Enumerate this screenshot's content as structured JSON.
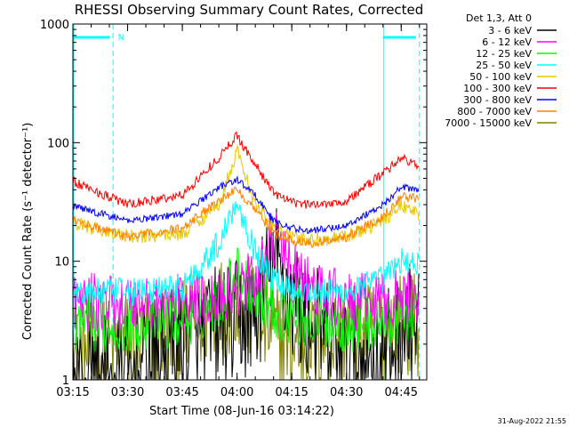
{
  "chart_data": {
    "type": "line",
    "title": "RHESSI Observing Summary Count Rates, Corrected",
    "xlabel": "Start Time (08-Jun-16 03:14:22)",
    "ylabel": "Corrected Count Rate (s⁻¹ detector⁻¹)",
    "yscale": "log",
    "ylim": [
      1,
      1000
    ],
    "xlim": [
      "03:15",
      "04:52"
    ],
    "x_ticks": [
      "03:15",
      "03:30",
      "03:45",
      "04:00",
      "04:15",
      "04:30",
      "04:45"
    ],
    "y_ticks": [
      1,
      10,
      100,
      1000
    ],
    "y_tick_labels": [
      "1",
      "10",
      "100",
      "1000"
    ],
    "legend_header": "Det 1,3, Att 0",
    "legend_position": "outside right",
    "grid": false,
    "annotations": [
      {
        "text": "N",
        "x": "03:26"
      }
    ],
    "night_intervals": [
      {
        "start": "03:15",
        "end": "03:26"
      },
      {
        "start": "04:40",
        "end": "04:50"
      }
    ],
    "series": [
      {
        "name": "3 - 6 keV",
        "color": "#000000",
        "x": [
          "03:15",
          "03:30",
          "03:45",
          "03:55",
          "04:00",
          "04:05",
          "04:10",
          "04:15",
          "04:20",
          "04:30",
          "04:40",
          "04:45",
          "04:50"
        ],
        "y": [
          1.0,
          1.0,
          2.0,
          2.8,
          3.0,
          3.5,
          10,
          5,
          3,
          1.4,
          1.5,
          2.5,
          3.0
        ]
      },
      {
        "name": "6 - 12 keV",
        "color": "#ff00ff",
        "x": [
          "03:15",
          "03:30",
          "03:45",
          "03:55",
          "04:00",
          "04:05",
          "04:10",
          "04:15",
          "04:20",
          "04:30",
          "04:40",
          "04:45",
          "04:50"
        ],
        "y": [
          4.5,
          4.5,
          4.5,
          5,
          6,
          7,
          16,
          9,
          6,
          4.5,
          4.5,
          5,
          5
        ]
      },
      {
        "name": "12 - 25 keV",
        "color": "#00ff00",
        "x": [
          "03:15",
          "03:30",
          "03:45",
          "03:55",
          "04:00",
          "04:05",
          "04:10",
          "04:15",
          "04:20",
          "04:30",
          "04:40",
          "04:45",
          "04:50"
        ],
        "y": [
          3.0,
          3.0,
          3.2,
          4.5,
          8.0,
          5.5,
          4.0,
          3.5,
          3.2,
          3.0,
          3.0,
          3.5,
          4.0
        ]
      },
      {
        "name": "25 - 50 keV",
        "color": "#00ffff",
        "x": [
          "03:15",
          "03:30",
          "03:45",
          "03:55",
          "04:00",
          "04:05",
          "04:10",
          "04:15",
          "04:20",
          "04:30",
          "04:40",
          "04:45",
          "04:50"
        ],
        "y": [
          5.5,
          5.5,
          6,
          14,
          33,
          12,
          7,
          6,
          5.5,
          5.5,
          7,
          10,
          10
        ]
      },
      {
        "name": "50 - 100 keV",
        "color": "#e6c800",
        "x": [
          "03:15",
          "03:30",
          "03:45",
          "03:55",
          "04:00",
          "04:05",
          "04:10",
          "04:15",
          "04:20",
          "04:30",
          "04:40",
          "04:45",
          "04:50"
        ],
        "y": [
          21,
          16,
          17,
          30,
          85,
          30,
          19,
          16,
          15,
          16,
          22,
          30,
          25
        ]
      },
      {
        "name": "100 - 300 keV",
        "color": "#ff0000",
        "x": [
          "03:15",
          "03:30",
          "03:45",
          "03:55",
          "04:00",
          "04:05",
          "04:10",
          "04:15",
          "04:20",
          "04:30",
          "04:40",
          "04:45",
          "04:50"
        ],
        "y": [
          47,
          30,
          36,
          75,
          115,
          65,
          38,
          31,
          30,
          32,
          55,
          75,
          62
        ]
      },
      {
        "name": "300 - 800 keV",
        "color": "#0000ff",
        "x": [
          "03:15",
          "03:30",
          "03:45",
          "03:55",
          "04:00",
          "04:05",
          "04:10",
          "04:15",
          "04:20",
          "04:30",
          "04:40",
          "04:45",
          "04:50"
        ],
        "y": [
          29,
          22,
          25,
          42,
          49,
          36,
          22,
          19,
          18,
          20,
          30,
          42,
          40
        ]
      },
      {
        "name": "800 - 7000 keV",
        "color": "#ff8000",
        "x": [
          "03:15",
          "03:30",
          "03:45",
          "03:55",
          "04:00",
          "04:05",
          "04:10",
          "04:15",
          "04:20",
          "04:30",
          "04:40",
          "04:45",
          "04:50"
        ],
        "y": [
          22,
          16,
          19,
          33,
          40,
          28,
          17,
          15,
          14,
          16,
          24,
          35,
          34
        ]
      },
      {
        "name": "7000 - 15000 keV",
        "color": "#808000",
        "x": [
          "03:15",
          "03:30",
          "03:45",
          "03:55",
          "04:00",
          "04:05",
          "04:10",
          "04:15",
          "04:20",
          "04:30",
          "04:40",
          "04:45",
          "04:50"
        ],
        "y": [
          1.5,
          2.0,
          2.5,
          4.0,
          5.0,
          3.5,
          2.5,
          2.0,
          2.0,
          2.5,
          2.5,
          3.0,
          3.0
        ]
      }
    ],
    "background": "#ffffff",
    "accent": "#00ffff"
  },
  "footer": {
    "timestamp": "31-Aug-2022 21:55"
  }
}
